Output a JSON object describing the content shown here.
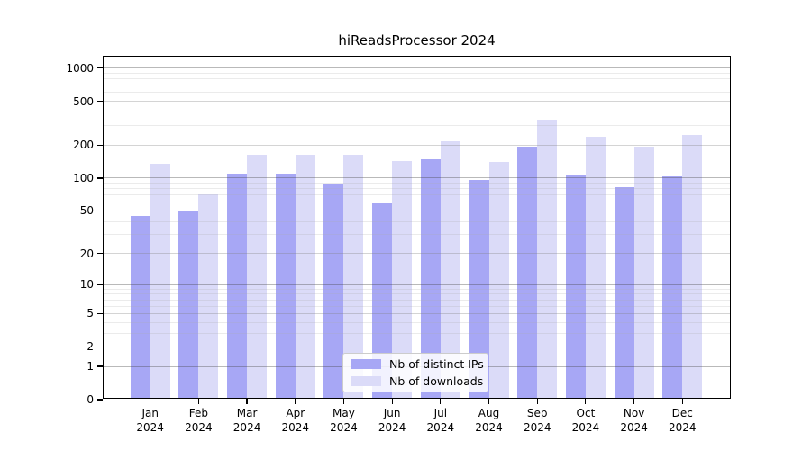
{
  "figure": {
    "title": "hiReadsProcessor 2024"
  },
  "chart_data": {
    "type": "bar",
    "title": "hiReadsProcessor 2024",
    "categories": [
      "Jan",
      "Feb",
      "Mar",
      "Apr",
      "May",
      "Jun",
      "Jul",
      "Aug",
      "Sep",
      "Oct",
      "Nov",
      "Dec"
    ],
    "year_label": "2024",
    "series": [
      {
        "name": "Nb of distinct IPs",
        "color": "#a7a7f5",
        "values": [
          45,
          50,
          109,
          109,
          90,
          59,
          149,
          97,
          194,
          107,
          83,
          104
        ]
      },
      {
        "name": "Nb of downloads",
        "color": "#dbdbf8",
        "values": [
          135,
          71,
          162,
          162,
          162,
          143,
          215,
          140,
          340,
          237,
          194,
          248
        ]
      }
    ],
    "xlabel": "",
    "ylabel": "",
    "yticks": [
      0,
      1,
      2,
      5,
      10,
      20,
      50,
      100,
      200,
      500,
      1000
    ],
    "yscale": "log10(1+v)",
    "ylim": [
      0,
      1300
    ],
    "grid": "both, drawn over bars",
    "legend_position": "lower center"
  }
}
